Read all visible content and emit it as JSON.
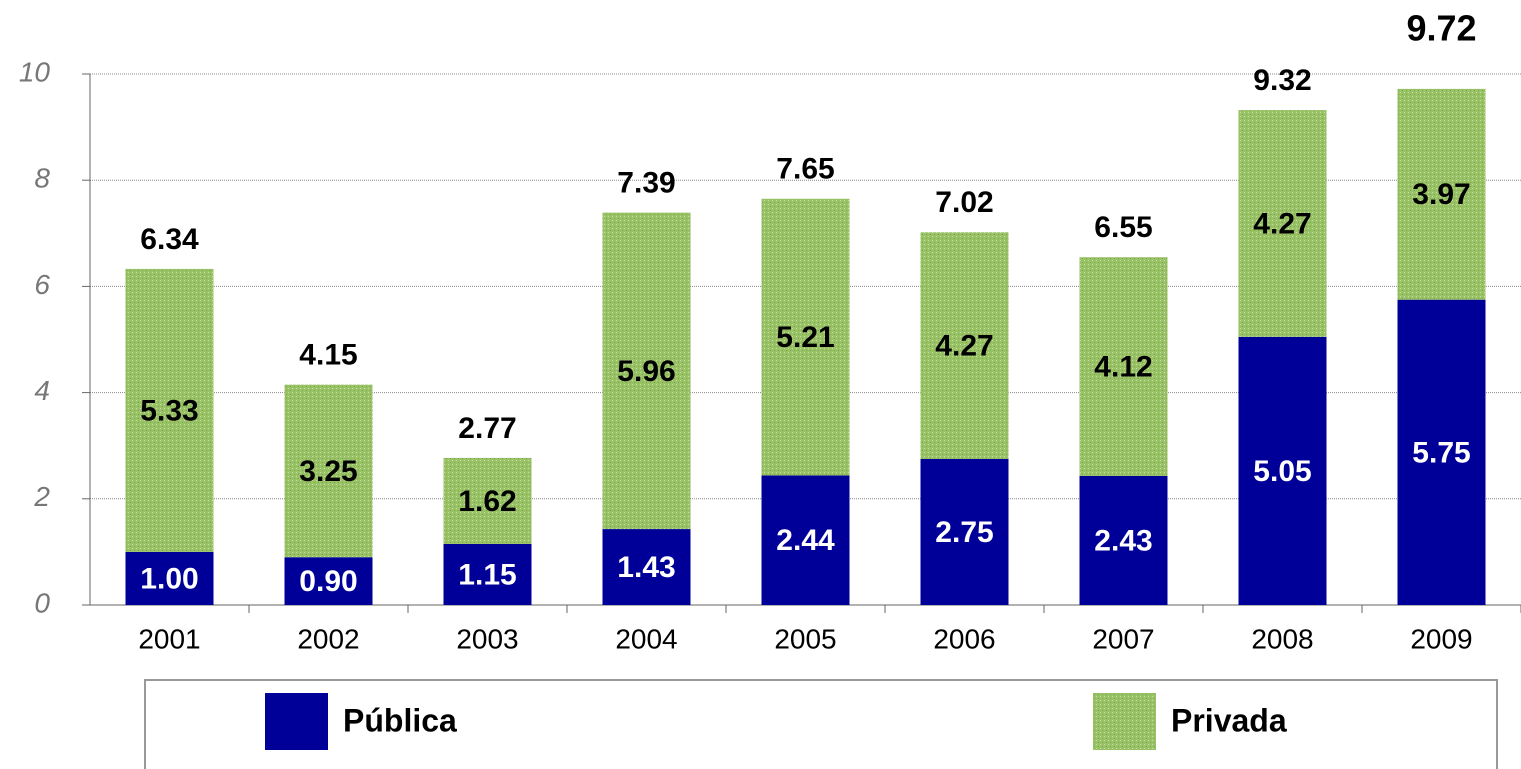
{
  "chart_data": {
    "type": "stacked_bar",
    "categories": [
      "2001",
      "2002",
      "2003",
      "2004",
      "2005",
      "2006",
      "2007",
      "2008",
      "2009"
    ],
    "series": [
      {
        "name": "Pública",
        "color": "#000099",
        "values": [
          1.0,
          0.9,
          1.15,
          1.43,
          2.44,
          2.75,
          2.43,
          5.05,
          5.75
        ],
        "value_labels": [
          "1.00",
          "0.90",
          "1.15",
          "1.43",
          "2.44",
          "2.75",
          "2.43",
          "5.05",
          "5.75"
        ]
      },
      {
        "name": "Privada",
        "color": "#99c266",
        "values": [
          5.33,
          3.25,
          1.62,
          5.96,
          5.21,
          4.27,
          4.12,
          4.27,
          3.97
        ],
        "value_labels": [
          "5.33",
          "3.25",
          "1.62",
          "5.96",
          "5.21",
          "4.27",
          "4.12",
          "4.27",
          "3.97"
        ]
      }
    ],
    "totals": [
      6.34,
      4.15,
      2.77,
      7.39,
      7.65,
      7.02,
      6.55,
      9.32,
      9.72
    ],
    "ylim": [
      0,
      10
    ],
    "yticks": [
      0,
      2,
      4,
      6,
      8,
      10
    ],
    "grid": true,
    "legend": "bottom"
  }
}
